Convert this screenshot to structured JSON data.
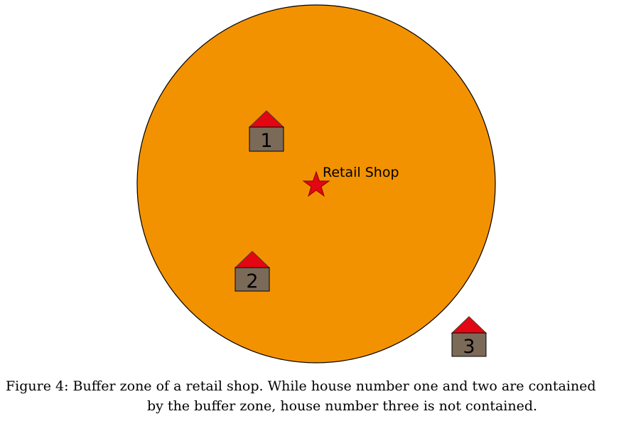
{
  "diagram": {
    "buffer_zone_color": "#F39200",
    "roof_color": "#E30613",
    "house_body_color": "#7B6A58",
    "star_color": "#E30613",
    "shop_label": "Retail Shop",
    "houses": [
      {
        "number": "1"
      },
      {
        "number": "2"
      },
      {
        "number": "3"
      }
    ]
  },
  "caption": {
    "line1": "Figure 4: Buffer zone of a retail shop. While house number one and two are contained",
    "line2": "by the buffer zone, house number three is not contained."
  }
}
